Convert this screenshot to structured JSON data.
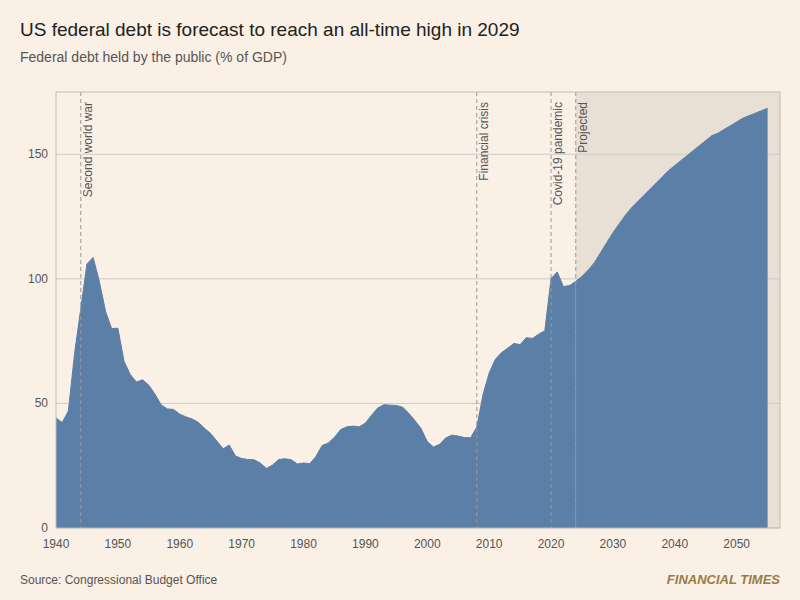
{
  "chart_data": {
    "type": "area",
    "title": "US federal debt is forecast to reach an all-time high in 2029",
    "subtitle": "Federal debt held by the public (% of GDP)",
    "source": "Source: Congressional Budget Office",
    "credit": "FINANCIAL TIMES",
    "background": "#faf0e6",
    "projected_color": "#e8e0d5",
    "projected_start": 2024,
    "xlim": [
      1940,
      2057
    ],
    "xticks": [
      1940,
      1950,
      1960,
      1970,
      1980,
      1990,
      2000,
      2010,
      2020,
      2030,
      2040,
      2050
    ],
    "ylim": [
      0,
      175
    ],
    "yticks": [
      0,
      50,
      100,
      150
    ],
    "grid": true,
    "vlines": [
      1944,
      2008,
      2020,
      2024
    ],
    "annotations": [
      {
        "label": "Second world war",
        "x": 1944.4,
        "y": 171
      },
      {
        "label": "Financial crisis",
        "x": 2008.4,
        "y": 171
      },
      {
        "label": "Covid-19 pandemic",
        "x": 2020.4,
        "y": 171
      },
      {
        "label": "Projected",
        "x": 2024.4,
        "y": 171
      }
    ],
    "series": [
      {
        "color": "#5b7fa6",
        "x": [
          1940,
          1941,
          1942,
          1943,
          1944,
          1945,
          1946,
          1947,
          1948,
          1949,
          1950,
          1951,
          1952,
          1953,
          1954,
          1955,
          1956,
          1957,
          1958,
          1959,
          1960,
          1961,
          1962,
          1963,
          1964,
          1965,
          1966,
          1967,
          1968,
          1969,
          1970,
          1971,
          1972,
          1973,
          1974,
          1975,
          1976,
          1977,
          1978,
          1979,
          1980,
          1981,
          1982,
          1983,
          1984,
          1985,
          1986,
          1987,
          1988,
          1989,
          1990,
          1991,
          1992,
          1993,
          1994,
          1995,
          1996,
          1997,
          1998,
          1999,
          2000,
          2001,
          2002,
          2003,
          2004,
          2005,
          2006,
          2007,
          2008,
          2009,
          2010,
          2011,
          2012,
          2013,
          2014,
          2015,
          2016,
          2017,
          2018,
          2019,
          2020,
          2021,
          2022,
          2023,
          2024
        ],
        "values": [
          44.2,
          42.3,
          47.0,
          70.0,
          88.0,
          106.0,
          108.6,
          99.0,
          87.0,
          80.0,
          80.2,
          66.9,
          61.6,
          58.6,
          59.5,
          57.3,
          53.7,
          49.4,
          47.8,
          47.6,
          45.7,
          44.6,
          43.8,
          42.4,
          40.0,
          37.9,
          34.9,
          31.8,
          33.3,
          28.9,
          27.9,
          27.5,
          27.4,
          26.1,
          23.9,
          25.3,
          27.5,
          27.8,
          27.4,
          25.7,
          26.1,
          25.8,
          28.7,
          33.1,
          34.1,
          36.4,
          39.5,
          40.6,
          40.9,
          40.6,
          42.1,
          45.3,
          48.2,
          49.5,
          49.3,
          49.2,
          48.5,
          46.1,
          43.1,
          39.9,
          34.7,
          32.5,
          33.6,
          36.2,
          37.3,
          36.9,
          36.3,
          36.2,
          40.5,
          53.5,
          62.2,
          67.7,
          70.4,
          72.2,
          74.1,
          73.6,
          76.4,
          76.1,
          77.8,
          79.2,
          100.1,
          102.8,
          96.9,
          97.3,
          99.0
        ]
      },
      {
        "color": "#5b7fa6",
        "x": [
          2024,
          2025,
          2026,
          2027,
          2028,
          2029,
          2030,
          2031,
          2032,
          2033,
          2034,
          2035,
          2036,
          2037,
          2038,
          2039,
          2040,
          2041,
          2042,
          2043,
          2044,
          2045,
          2046,
          2047,
          2048,
          2049,
          2050,
          2051,
          2052,
          2053,
          2054,
          2055
        ],
        "values": [
          99.0,
          101.0,
          103.5,
          106.5,
          110.5,
          114.5,
          118.5,
          122.0,
          125.5,
          128.5,
          131.0,
          133.5,
          136.0,
          138.5,
          141.0,
          143.5,
          145.5,
          147.5,
          149.5,
          151.5,
          153.5,
          155.5,
          157.5,
          158.5,
          160.0,
          161.5,
          163.0,
          164.5,
          165.5,
          166.5,
          167.5,
          168.5
        ]
      }
    ]
  }
}
